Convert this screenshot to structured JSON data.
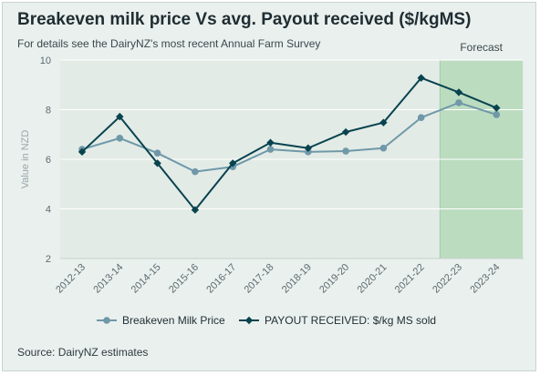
{
  "title": "Breakeven milk price Vs avg. Payout received ($/kgMS)",
  "subtitle": "For details see the DairyNZ's most recent Annual Farm Survey",
  "source": "Source: DairyNZ estimates",
  "chart_data": {
    "type": "line",
    "ylabel": "Value in NZD",
    "xlabel": "",
    "ylim": [
      2,
      10
    ],
    "yticks": [
      2,
      4,
      6,
      8,
      10
    ],
    "grid": true,
    "legend_position": "bottom",
    "categories": [
      "2012-13",
      "2013-14",
      "2014-15",
      "2015-16",
      "2016-17",
      "2017-18",
      "2018-19",
      "2019-20",
      "2020-21",
      "2021-22",
      "2022-23",
      "2023-24"
    ],
    "series": [
      {
        "name": "Breakeven Milk Price",
        "color": "#6f98a8",
        "marker": "circle",
        "values": [
          6.4,
          6.85,
          6.25,
          5.5,
          5.7,
          6.4,
          6.3,
          6.33,
          6.45,
          7.68,
          8.28,
          7.8
        ]
      },
      {
        "name": "PAYOUT RECEIVED: $/kg MS sold",
        "color": "#08434f",
        "marker": "diamond",
        "values": [
          6.3,
          7.72,
          5.84,
          3.96,
          5.84,
          6.67,
          6.45,
          7.1,
          7.48,
          9.28,
          8.7,
          8.07
        ]
      }
    ],
    "band": {
      "label": "Forecast",
      "from_category": "2022-23",
      "to_category": "2023-24",
      "color": "#bcdcc0"
    }
  }
}
